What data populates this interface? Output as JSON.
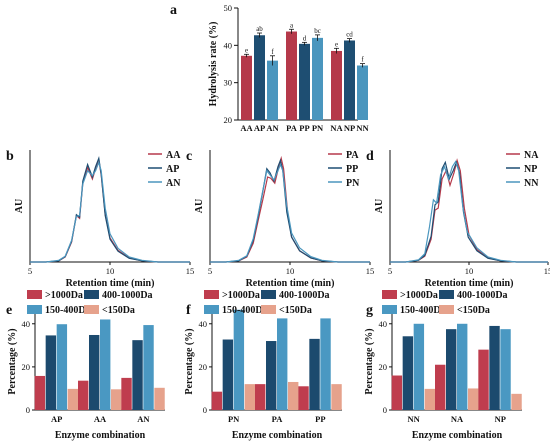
{
  "figure_labels": {
    "a": "a",
    "b": "b",
    "c": "c",
    "d": "d",
    "e": "e",
    "f": "f",
    "g": "g"
  },
  "colors": {
    "A": "#b5394a",
    "P": "#1e4e72",
    "N": "#4a96be",
    "gt1000": "#bf3d4e",
    "r400_1000": "#1c4a6e",
    "lt150": "#e6a28c",
    "r150_400": "#4a98c2"
  },
  "chart_data": [
    {
      "id": "a",
      "type": "bar",
      "title": "",
      "xlabel": "",
      "ylabel": "Hydrolysis rate (%)",
      "ylim": [
        20,
        50
      ],
      "yticks": [
        20,
        30,
        40,
        50
      ],
      "grid": false,
      "categories": [
        "AA",
        "AP",
        "AN",
        "PA",
        "PP",
        "PN",
        "NA",
        "NP",
        "NN"
      ],
      "values": [
        37.2,
        42.7,
        35.9,
        43.7,
        40.4,
        42.0,
        38.5,
        41.3,
        34.6
      ],
      "errors": [
        0.4,
        0.6,
        1.3,
        0.6,
        0.4,
        0.8,
        0.7,
        0.5,
        0.5
      ],
      "sig_labels": [
        "e",
        "ab",
        "f",
        "a",
        "d",
        "bc",
        "e",
        "cd",
        "f"
      ],
      "color_keys": [
        "A",
        "P",
        "N",
        "A",
        "P",
        "N",
        "A",
        "P",
        "N"
      ]
    },
    {
      "id": "b",
      "type": "line",
      "xlabel": "Retention time (min)",
      "ylabel": "AU",
      "xlim": [
        5,
        15
      ],
      "xticks": [
        5,
        10,
        15
      ],
      "legend": "top-right",
      "series": [
        {
          "name": "AA",
          "color_key": "A",
          "points": [
            [
              5,
              0
            ],
            [
              6,
              0
            ],
            [
              6.8,
              0.03
            ],
            [
              7.2,
              0.12
            ],
            [
              7.6,
              0.48
            ],
            [
              7.9,
              1.12
            ],
            [
              8.1,
              1.05
            ],
            [
              8.3,
              1.9
            ],
            [
              8.6,
              2.28
            ],
            [
              8.9,
              2.0
            ],
            [
              9.1,
              2.25
            ],
            [
              9.3,
              2.45
            ],
            [
              9.45,
              2.1
            ],
            [
              9.7,
              1.15
            ],
            [
              10.0,
              0.58
            ],
            [
              10.5,
              0.28
            ],
            [
              11.2,
              0.1
            ],
            [
              12,
              0.03
            ],
            [
              13,
              0
            ],
            [
              15,
              0
            ]
          ]
        },
        {
          "name": "AP",
          "color_key": "P",
          "points": [
            [
              5,
              0
            ],
            [
              6,
              0
            ],
            [
              6.8,
              0.03
            ],
            [
              7.2,
              0.13
            ],
            [
              7.6,
              0.5
            ],
            [
              7.9,
              1.14
            ],
            [
              8.1,
              1.08
            ],
            [
              8.3,
              1.95
            ],
            [
              8.6,
              2.35
            ],
            [
              8.9,
              2.05
            ],
            [
              9.1,
              2.3
            ],
            [
              9.3,
              2.5
            ],
            [
              9.45,
              2.12
            ],
            [
              9.7,
              1.12
            ],
            [
              10.0,
              0.55
            ],
            [
              10.5,
              0.26
            ],
            [
              11.2,
              0.09
            ],
            [
              12,
              0.03
            ],
            [
              13,
              0
            ],
            [
              15,
              0
            ]
          ]
        },
        {
          "name": "AN",
          "color_key": "N",
          "points": [
            [
              5,
              0
            ],
            [
              6,
              0
            ],
            [
              6.8,
              0.04
            ],
            [
              7.2,
              0.14
            ],
            [
              7.6,
              0.52
            ],
            [
              7.9,
              1.1
            ],
            [
              8.1,
              1.12
            ],
            [
              8.3,
              1.88
            ],
            [
              8.6,
              2.2
            ],
            [
              8.9,
              2.08
            ],
            [
              9.1,
              2.2
            ],
            [
              9.3,
              2.4
            ],
            [
              9.45,
              2.2
            ],
            [
              9.7,
              1.3
            ],
            [
              10.0,
              0.68
            ],
            [
              10.5,
              0.33
            ],
            [
              11.2,
              0.12
            ],
            [
              12,
              0.04
            ],
            [
              13,
              0
            ],
            [
              15,
              0
            ]
          ]
        }
      ]
    },
    {
      "id": "c",
      "type": "line",
      "xlabel": "Retention time (min)",
      "ylabel": "AU",
      "xlim": [
        5,
        15
      ],
      "xticks": [
        5,
        10,
        15
      ],
      "legend": "top-right",
      "series": [
        {
          "name": "PA",
          "color_key": "A",
          "points": [
            [
              5,
              0
            ],
            [
              6,
              0
            ],
            [
              6.8,
              0.03
            ],
            [
              7.3,
              0.12
            ],
            [
              7.7,
              0.45
            ],
            [
              8.0,
              0.98
            ],
            [
              8.3,
              1.5
            ],
            [
              8.6,
              2.05
            ],
            [
              8.8,
              2.02
            ],
            [
              9.05,
              1.9
            ],
            [
              9.3,
              2.3
            ],
            [
              9.45,
              2.5
            ],
            [
              9.6,
              2.25
            ],
            [
              9.85,
              1.2
            ],
            [
              10.1,
              0.6
            ],
            [
              10.6,
              0.27
            ],
            [
              11.3,
              0.1
            ],
            [
              12,
              0.03
            ],
            [
              13,
              0
            ],
            [
              15,
              0
            ]
          ]
        },
        {
          "name": "PP",
          "color_key": "P",
          "points": [
            [
              5,
              0
            ],
            [
              6,
              0
            ],
            [
              6.8,
              0.03
            ],
            [
              7.3,
              0.14
            ],
            [
              7.7,
              0.52
            ],
            [
              8.0,
              1.08
            ],
            [
              8.3,
              1.7
            ],
            [
              8.55,
              2.25
            ],
            [
              8.75,
              2.15
            ],
            [
              9.0,
              1.95
            ],
            [
              9.25,
              2.3
            ],
            [
              9.4,
              2.45
            ],
            [
              9.55,
              2.2
            ],
            [
              9.8,
              1.2
            ],
            [
              10.1,
              0.6
            ],
            [
              10.6,
              0.27
            ],
            [
              11.3,
              0.1
            ],
            [
              12,
              0.03
            ],
            [
              13,
              0
            ],
            [
              15,
              0
            ]
          ]
        },
        {
          "name": "PN",
          "color_key": "N",
          "points": [
            [
              5,
              0
            ],
            [
              6,
              0
            ],
            [
              6.8,
              0.04
            ],
            [
              7.3,
              0.15
            ],
            [
              7.7,
              0.56
            ],
            [
              8.0,
              1.12
            ],
            [
              8.3,
              1.72
            ],
            [
              8.55,
              2.2
            ],
            [
              8.75,
              2.1
            ],
            [
              9.0,
              1.98
            ],
            [
              9.25,
              2.2
            ],
            [
              9.4,
              2.35
            ],
            [
              9.55,
              2.2
            ],
            [
              9.8,
              1.35
            ],
            [
              10.1,
              0.7
            ],
            [
              10.6,
              0.34
            ],
            [
              11.3,
              0.13
            ],
            [
              12,
              0.04
            ],
            [
              13,
              0
            ],
            [
              15,
              0
            ]
          ]
        }
      ]
    },
    {
      "id": "d",
      "type": "line",
      "xlabel": "Retention time (min)",
      "ylabel": "AU",
      "xlim": [
        5,
        15
      ],
      "xticks": [
        5,
        10,
        15
      ],
      "legend": "top-right",
      "series": [
        {
          "name": "NA",
          "color_key": "A",
          "points": [
            [
              5,
              0
            ],
            [
              6,
              0
            ],
            [
              6.8,
              0.04
            ],
            [
              7.2,
              0.14
            ],
            [
              7.6,
              0.55
            ],
            [
              7.85,
              1.25
            ],
            [
              8.05,
              1.3
            ],
            [
              8.3,
              2.0
            ],
            [
              8.55,
              2.2
            ],
            [
              8.8,
              1.85
            ],
            [
              9.05,
              2.15
            ],
            [
              9.25,
              2.45
            ],
            [
              9.45,
              2.2
            ],
            [
              9.7,
              1.3
            ],
            [
              10.0,
              0.65
            ],
            [
              10.5,
              0.3
            ],
            [
              11.2,
              0.1
            ],
            [
              12,
              0.03
            ],
            [
              13,
              0
            ],
            [
              15,
              0
            ]
          ]
        },
        {
          "name": "NP",
          "color_key": "P",
          "points": [
            [
              5,
              0
            ],
            [
              6,
              0
            ],
            [
              6.8,
              0.04
            ],
            [
              7.2,
              0.16
            ],
            [
              7.6,
              0.62
            ],
            [
              7.85,
              1.38
            ],
            [
              8.05,
              1.45
            ],
            [
              8.3,
              2.25
            ],
            [
              8.5,
              2.4
            ],
            [
              8.75,
              2.0
            ],
            [
              9.0,
              2.2
            ],
            [
              9.2,
              2.4
            ],
            [
              9.4,
              2.15
            ],
            [
              9.65,
              1.2
            ],
            [
              9.95,
              0.6
            ],
            [
              10.5,
              0.27
            ],
            [
              11.2,
              0.09
            ],
            [
              12,
              0.03
            ],
            [
              13,
              0
            ],
            [
              15,
              0
            ]
          ]
        },
        {
          "name": "NN",
          "color_key": "N",
          "points": [
            [
              5,
              0
            ],
            [
              6,
              0
            ],
            [
              6.8,
              0.05
            ],
            [
              7.2,
              0.2
            ],
            [
              7.5,
              0.85
            ],
            [
              7.75,
              1.5
            ],
            [
              7.95,
              1.42
            ],
            [
              8.2,
              2.1
            ],
            [
              8.45,
              2.3
            ],
            [
              8.7,
              2.0
            ],
            [
              8.95,
              2.3
            ],
            [
              9.15,
              2.42
            ],
            [
              9.35,
              2.2
            ],
            [
              9.6,
              1.35
            ],
            [
              9.9,
              0.72
            ],
            [
              10.5,
              0.34
            ],
            [
              11.2,
              0.12
            ],
            [
              12,
              0.04
            ],
            [
              13,
              0
            ],
            [
              15,
              0
            ]
          ]
        }
      ]
    },
    {
      "id": "e",
      "type": "bar",
      "xlabel": "Enzyme combination",
      "ylabel": "Percentage (%)",
      "ylim": [
        0,
        45
      ],
      "yticks": [
        0,
        20,
        40
      ],
      "legend": "top",
      "legend_order": [
        0,
        2,
        1,
        3
      ],
      "categories": [
        "AP",
        "AA",
        "AN"
      ],
      "series": [
        {
          "name": ">1000Da",
          "color_key": "gt1000",
          "values": [
            15.8,
            13.6,
            14.9
          ]
        },
        {
          "name": "400-1000Da",
          "color_key": "r400_1000",
          "values": [
            34.6,
            34.8,
            32.4
          ]
        },
        {
          "name": "150-400Da",
          "color_key": "r150_400",
          "values": [
            39.8,
            42.0,
            39.4
          ]
        },
        {
          "name": "<150Da",
          "color_key": "lt150",
          "values": [
            9.8,
            9.6,
            10.3
          ]
        }
      ]
    },
    {
      "id": "f",
      "type": "bar",
      "xlabel": "Enzyme combination",
      "ylabel": "Percentage (%)",
      "ylim": [
        0,
        45
      ],
      "yticks": [
        0,
        20,
        40
      ],
      "legend": "top",
      "legend_order": [
        0,
        2,
        1,
        3
      ],
      "categories": [
        "PN",
        "PA",
        "PP"
      ],
      "series": [
        {
          "name": ">1000Da",
          "color_key": "gt1000",
          "values": [
            8.5,
            12.0,
            11.0
          ]
        },
        {
          "name": "400-1000Da",
          "color_key": "r400_1000",
          "values": [
            32.7,
            32.0,
            33.0
          ]
        },
        {
          "name": "150-400Da",
          "color_key": "r150_400",
          "values": [
            46.5,
            42.5,
            42.5
          ]
        },
        {
          "name": "<150Da",
          "color_key": "lt150",
          "values": [
            12.0,
            13.0,
            12.0
          ]
        }
      ]
    },
    {
      "id": "g",
      "type": "bar",
      "xlabel": "Enzyme combination",
      "ylabel": "Percentage (%)",
      "ylim": [
        0,
        45
      ],
      "yticks": [
        0,
        20,
        40
      ],
      "legend": "top",
      "legend_order": [
        0,
        2,
        1,
        3
      ],
      "categories": [
        "NN",
        "NA",
        "NP"
      ],
      "series": [
        {
          "name": ">1000Da",
          "color_key": "gt1000",
          "values": [
            16.0,
            21.0,
            28.0
          ]
        },
        {
          "name": "400-1000Da",
          "color_key": "r400_1000",
          "values": [
            34.2,
            37.5,
            39.0
          ]
        },
        {
          "name": "150-400Da",
          "color_key": "r150_400",
          "values": [
            40.0,
            40.0,
            37.5
          ]
        },
        {
          "name": "<150Da",
          "color_key": "lt150",
          "values": [
            9.8,
            10.0,
            7.5
          ]
        }
      ]
    }
  ]
}
